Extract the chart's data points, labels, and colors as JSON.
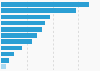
{
  "values": [
    34,
    29,
    19,
    17,
    16,
    14,
    12,
    8,
    5,
    3,
    2
  ],
  "bar_color": "#2b9fd4",
  "last_bar_color": "#a8d8f0",
  "background_color": "#f9f9f9",
  "grid_color": "#d0d0d0",
  "xlim_max": 38
}
